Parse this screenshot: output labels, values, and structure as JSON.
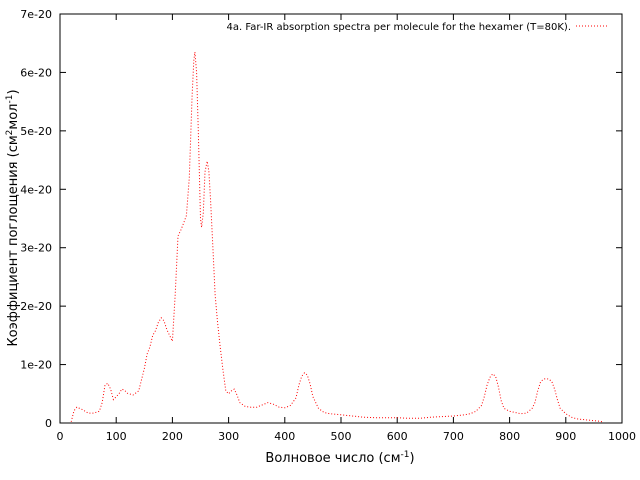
{
  "chart_data": {
    "type": "line",
    "title": "",
    "xlabel": {
      "main": "Волновое число (см",
      "sup": "-1",
      "tail": ")"
    },
    "ylabel": {
      "main": "Коэффициент поглощения (см",
      "sup1": "2",
      "mid": "мол",
      "sup2": "-1",
      "tail": ")"
    },
    "xlim": [
      0,
      1000
    ],
    "ylim": [
      0,
      7e-20
    ],
    "x_ticks": [
      0,
      100,
      200,
      300,
      400,
      500,
      600,
      700,
      800,
      900,
      1000
    ],
    "x_tick_labels": [
      "0",
      "100",
      "200",
      "300",
      "400",
      "500",
      "600",
      "700",
      "800",
      "900",
      "1000"
    ],
    "y_ticks": [
      0,
      1e-20,
      2e-20,
      3e-20,
      4e-20,
      5e-20,
      6e-20,
      7e-20
    ],
    "y_tick_labels": [
      "0",
      "1e-20",
      "2e-20",
      "3e-20",
      "4e-20",
      "5e-20",
      "6e-20",
      "7e-20"
    ],
    "grid": false,
    "legend_position": "top-right",
    "line_style": "dotted",
    "series": [
      {
        "name": "4a. Far-IR absorption spectra per molecule for the hexamer (T=80K).",
        "color": "#ff0000",
        "x": [
          20,
          25,
          30,
          40,
          50,
          60,
          70,
          75,
          80,
          85,
          90,
          95,
          100,
          105,
          110,
          115,
          120,
          130,
          140,
          150,
          155,
          160,
          165,
          170,
          175,
          180,
          185,
          190,
          195,
          200,
          205,
          210,
          215,
          220,
          225,
          230,
          235,
          238,
          240,
          243,
          246,
          250,
          252,
          255,
          258,
          262,
          265,
          268,
          272,
          276,
          280,
          285,
          290,
          295,
          300,
          305,
          310,
          315,
          320,
          330,
          340,
          350,
          360,
          370,
          380,
          390,
          400,
          410,
          420,
          425,
          430,
          435,
          440,
          445,
          450,
          460,
          470,
          480,
          500,
          520,
          540,
          560,
          580,
          600,
          620,
          640,
          660,
          680,
          700,
          720,
          730,
          740,
          750,
          755,
          760,
          765,
          770,
          775,
          780,
          785,
          790,
          800,
          810,
          820,
          830,
          840,
          845,
          850,
          855,
          860,
          865,
          870,
          875,
          880,
          885,
          890,
          900,
          910,
          920,
          930,
          940,
          950,
          960,
          965
        ],
        "y": [
          2e-22,
          2.1e-21,
          2.7e-21,
          2.3e-21,
          1.7e-21,
          1.7e-21,
          2e-21,
          3.5e-21,
          6.5e-21,
          6.8e-21,
          5.8e-21,
          4e-21,
          4.5e-21,
          5e-21,
          5.8e-21,
          5.6e-21,
          5.1e-21,
          4.8e-21,
          5.5e-21,
          9.3e-21,
          1.18e-20,
          1.3e-20,
          1.5e-20,
          1.58e-20,
          1.72e-20,
          1.8e-20,
          1.75e-20,
          1.6e-20,
          1.5e-20,
          1.4e-20,
          2.2e-20,
          3.2e-20,
          3.3e-20,
          3.42e-20,
          3.55e-20,
          4.2e-20,
          5.6e-20,
          6.2e-20,
          6.35e-20,
          6e-20,
          5e-20,
          3.5e-20,
          3.35e-20,
          3.6e-20,
          4.3e-20,
          4.48e-20,
          4.3e-20,
          3.8e-20,
          3e-20,
          2.2e-20,
          1.75e-20,
          1.3e-20,
          9e-21,
          5.5e-21,
          5e-21,
          5.5e-21,
          5.8e-21,
          4.8e-21,
          3.5e-21,
          2.8e-21,
          2.7e-21,
          2.7e-21,
          3.1e-21,
          3.5e-21,
          3.2e-21,
          2.7e-21,
          2.6e-21,
          3e-21,
          4.3e-21,
          6.5e-21,
          8e-21,
          8.6e-21,
          8.2e-21,
          6.7e-21,
          4.5e-21,
          2.5e-21,
          1.8e-21,
          1.6e-21,
          1.4e-21,
          1.2e-21,
          1e-21,
          9e-22,
          9e-22,
          9e-22,
          8e-22,
          8e-22,
          1e-21,
          1.1e-21,
          1.2e-21,
          1.4e-21,
          1.6e-21,
          2e-21,
          3e-21,
          4.5e-21,
          6.5e-21,
          7.8e-21,
          8.4e-21,
          8e-21,
          6.2e-21,
          3.8e-21,
          2.5e-21,
          2e-21,
          1.8e-21,
          1.6e-21,
          1.7e-21,
          2.5e-21,
          3.5e-21,
          5.5e-21,
          7e-21,
          7.5e-21,
          7.6e-21,
          7.5e-21,
          7.1e-21,
          5.8e-21,
          4e-21,
          2.5e-21,
          1.6e-21,
          1e-21,
          7e-22,
          6e-22,
          5e-22,
          4e-22,
          3e-22,
          2e-22
        ]
      }
    ]
  }
}
